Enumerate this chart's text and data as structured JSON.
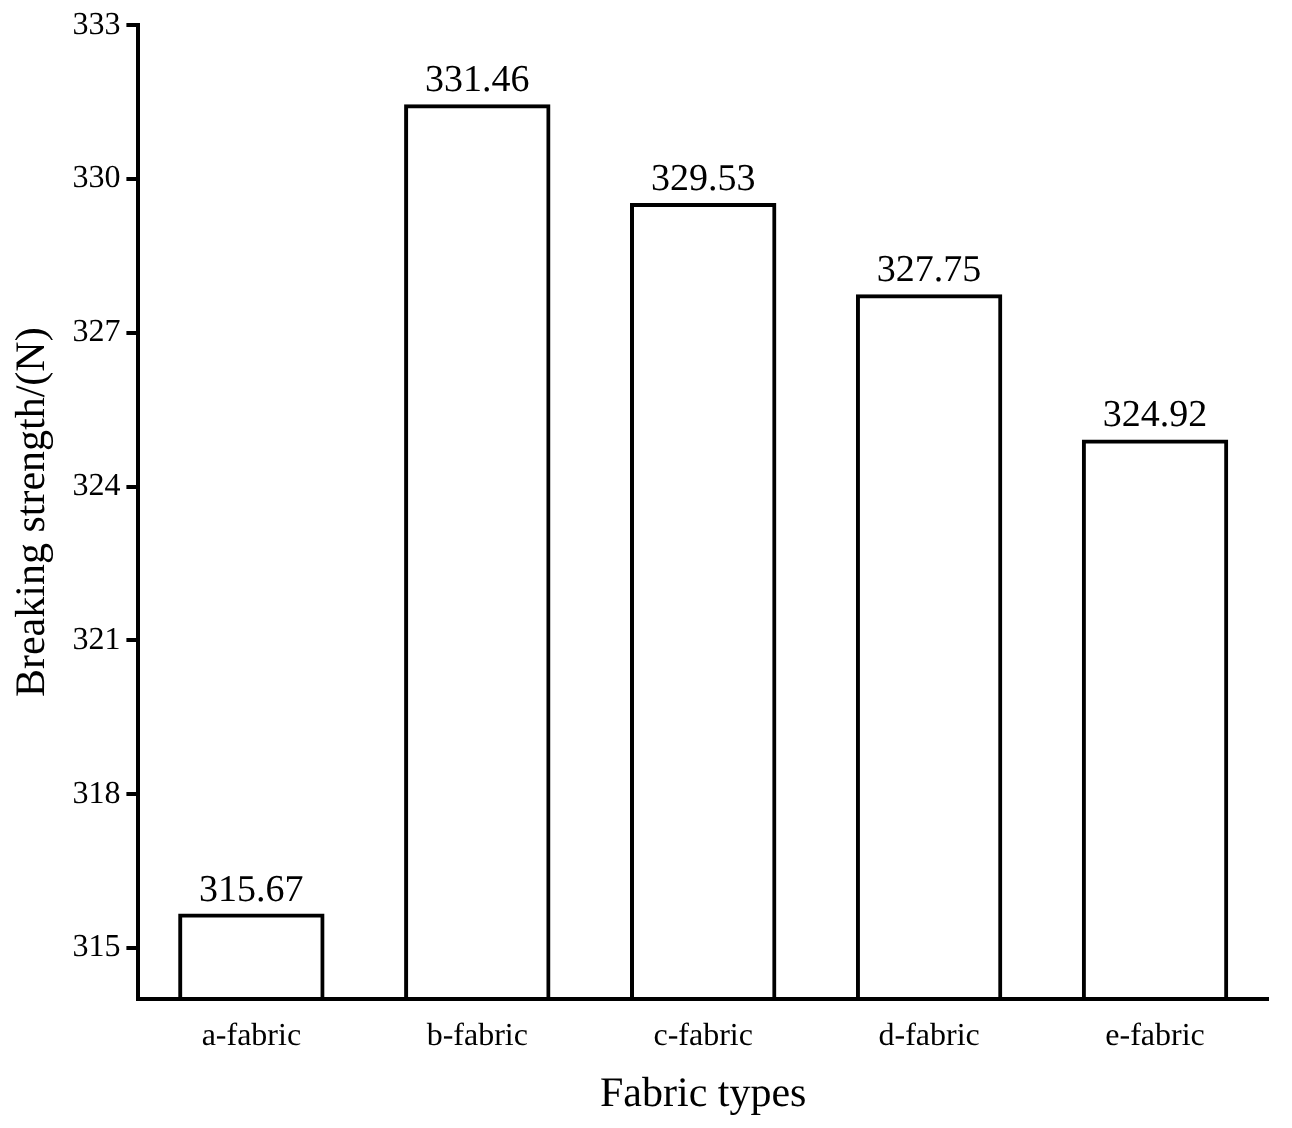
{
  "chart_data": {
    "type": "bar",
    "xlabel": "Fabric types",
    "ylabel": "Breaking strength/(N)",
    "categories": [
      "a-fabric",
      "b-fabric",
      "c-fabric",
      "d-fabric",
      "e-fabric"
    ],
    "values": [
      315.67,
      331.46,
      329.53,
      327.75,
      324.92
    ],
    "color": "#000000",
    "ylim": [
      314,
      333
    ],
    "yticks": [
      315,
      318,
      321,
      324,
      327,
      330,
      333
    ],
    "data_labels": true,
    "grid": false,
    "legend": false
  }
}
